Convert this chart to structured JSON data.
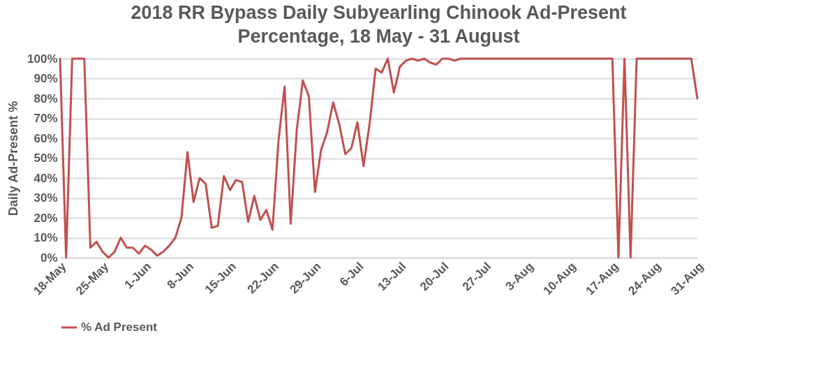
{
  "chart_data": {
    "type": "line",
    "title": "2018 RR Bypass Daily Subyearling Chinook Ad-Present Percentage, 18 May - 31 August",
    "ylabel": "Daily Ad-Present %",
    "x": [
      "2018-05-18",
      "2018-05-19",
      "2018-05-20",
      "2018-05-21",
      "2018-05-22",
      "2018-05-23",
      "2018-05-24",
      "2018-05-25",
      "2018-05-26",
      "2018-05-27",
      "2018-05-28",
      "2018-05-29",
      "2018-05-30",
      "2018-05-31",
      "2018-06-01",
      "2018-06-02",
      "2018-06-03",
      "2018-06-04",
      "2018-06-05",
      "2018-06-06",
      "2018-06-07",
      "2018-06-08",
      "2018-06-09",
      "2018-06-10",
      "2018-06-11",
      "2018-06-12",
      "2018-06-13",
      "2018-06-14",
      "2018-06-15",
      "2018-06-16",
      "2018-06-17",
      "2018-06-18",
      "2018-06-19",
      "2018-06-20",
      "2018-06-21",
      "2018-06-22",
      "2018-06-23",
      "2018-06-24",
      "2018-06-25",
      "2018-06-26",
      "2018-06-27",
      "2018-06-28",
      "2018-06-29",
      "2018-06-30",
      "2018-07-01",
      "2018-07-02",
      "2018-07-03",
      "2018-07-04",
      "2018-07-05",
      "2018-07-06",
      "2018-07-07",
      "2018-07-08",
      "2018-07-09",
      "2018-07-10",
      "2018-07-11",
      "2018-07-12",
      "2018-07-13",
      "2018-07-14",
      "2018-07-15",
      "2018-07-16",
      "2018-07-17",
      "2018-07-18",
      "2018-07-19",
      "2018-07-20",
      "2018-07-21",
      "2018-07-22",
      "2018-07-23",
      "2018-07-24",
      "2018-07-25",
      "2018-07-26",
      "2018-07-27",
      "2018-07-28",
      "2018-07-29",
      "2018-07-30",
      "2018-07-31",
      "2018-08-01",
      "2018-08-02",
      "2018-08-03",
      "2018-08-04",
      "2018-08-05",
      "2018-08-06",
      "2018-08-07",
      "2018-08-08",
      "2018-08-09",
      "2018-08-10",
      "2018-08-11",
      "2018-08-12",
      "2018-08-13",
      "2018-08-14",
      "2018-08-15",
      "2018-08-16",
      "2018-08-17",
      "2018-08-18",
      "2018-08-19",
      "2018-08-20",
      "2018-08-21",
      "2018-08-22",
      "2018-08-23",
      "2018-08-24",
      "2018-08-25",
      "2018-08-26",
      "2018-08-27",
      "2018-08-28",
      "2018-08-29",
      "2018-08-30",
      "2018-08-31"
    ],
    "series": [
      {
        "name": "% Ad Present",
        "color": "#c0504d",
        "values": [
          100,
          0,
          100,
          100,
          100,
          5,
          8,
          3,
          0,
          3,
          10,
          5,
          5,
          2,
          6,
          4,
          1,
          3,
          6,
          10,
          20,
          53,
          28,
          40,
          37,
          15,
          16,
          41,
          34,
          39,
          38,
          18,
          31,
          19,
          24,
          14,
          59,
          86,
          17,
          64,
          89,
          81,
          33,
          54,
          63,
          78,
          67,
          52,
          55,
          68,
          46,
          67,
          95,
          93,
          100,
          83,
          96,
          99,
          100,
          99,
          100,
          98,
          97,
          100,
          100,
          99,
          100,
          100,
          100,
          100,
          100,
          100,
          100,
          100,
          100,
          100,
          100,
          100,
          100,
          100,
          100,
          100,
          100,
          100,
          100,
          100,
          100,
          100,
          100,
          100,
          100,
          100,
          0,
          100,
          0,
          100,
          100,
          100,
          100,
          100,
          100,
          100,
          100,
          100,
          100,
          80
        ]
      }
    ],
    "xlim": [
      "2018-05-18",
      "2018-08-31"
    ],
    "xticks": [
      {
        "value": "2018-05-18",
        "label": "18-May"
      },
      {
        "value": "2018-05-25",
        "label": "25-May"
      },
      {
        "value": "2018-06-01",
        "label": "1-Jun"
      },
      {
        "value": "2018-06-08",
        "label": "8-Jun"
      },
      {
        "value": "2018-06-15",
        "label": "15-Jun"
      },
      {
        "value": "2018-06-22",
        "label": "22-Jun"
      },
      {
        "value": "2018-06-29",
        "label": "29-Jun"
      },
      {
        "value": "2018-07-06",
        "label": "6-Jul"
      },
      {
        "value": "2018-07-13",
        "label": "13-Jul"
      },
      {
        "value": "2018-07-20",
        "label": "20-Jul"
      },
      {
        "value": "2018-07-27",
        "label": "27-Jul"
      },
      {
        "value": "2018-08-03",
        "label": "3-Aug"
      },
      {
        "value": "2018-08-10",
        "label": "10-Aug"
      },
      {
        "value": "2018-08-17",
        "label": "17-Aug"
      },
      {
        "value": "2018-08-24",
        "label": "24-Aug"
      },
      {
        "value": "2018-08-31",
        "label": "31-Aug"
      }
    ],
    "ylim": [
      0,
      100
    ],
    "yticks": [
      {
        "value": 0,
        "label": "0%"
      },
      {
        "value": 10,
        "label": "10%"
      },
      {
        "value": 20,
        "label": "20%"
      },
      {
        "value": 30,
        "label": "30%"
      },
      {
        "value": 40,
        "label": "40%"
      },
      {
        "value": 50,
        "label": "50%"
      },
      {
        "value": 60,
        "label": "60%"
      },
      {
        "value": 70,
        "label": "70%"
      },
      {
        "value": 80,
        "label": "80%"
      },
      {
        "value": 90,
        "label": "90%"
      },
      {
        "value": 100,
        "label": "100%"
      }
    ],
    "grid": "y",
    "legend": "bottom",
    "marker": "none",
    "line_style": "solid"
  }
}
